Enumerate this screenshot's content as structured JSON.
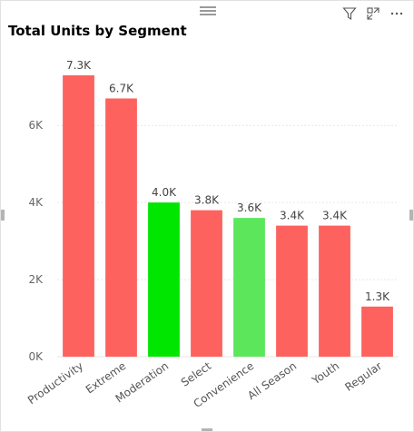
{
  "title": "Total Units by Segment",
  "header_icons": [
    "filter-icon",
    "focus-mode-icon",
    "more-options-icon"
  ],
  "colors": {
    "default_bar": "#FD625E",
    "highlight_bar": "#00E600",
    "highlight_bar_2": "#5CE65C",
    "gridline": "#e6e6e6"
  },
  "chart_data": {
    "type": "bar",
    "title": "Total Units by Segment",
    "categories": [
      "Productivity",
      "Extreme",
      "Moderation",
      "Select",
      "Convenience",
      "All Season",
      "Youth",
      "Regular"
    ],
    "values": [
      7300,
      6700,
      4000,
      3800,
      3600,
      3400,
      3400,
      1300
    ],
    "data_labels": [
      "7.3K",
      "6.7K",
      "4.0K",
      "3.8K",
      "3.6K",
      "3.4K",
      "3.4K",
      "1.3K"
    ],
    "bar_colors": [
      "#FD625E",
      "#FD625E",
      "#00E600",
      "#FD625E",
      "#5CE65C",
      "#FD625E",
      "#FD625E",
      "#FD625E"
    ],
    "yticks": [
      0,
      2000,
      4000,
      6000
    ],
    "ytick_labels": [
      "0K",
      "2K",
      "4K",
      "6K"
    ],
    "ylim": [
      0,
      7300
    ],
    "xlabel": "",
    "ylabel": "",
    "grid": true,
    "legend": "none"
  }
}
